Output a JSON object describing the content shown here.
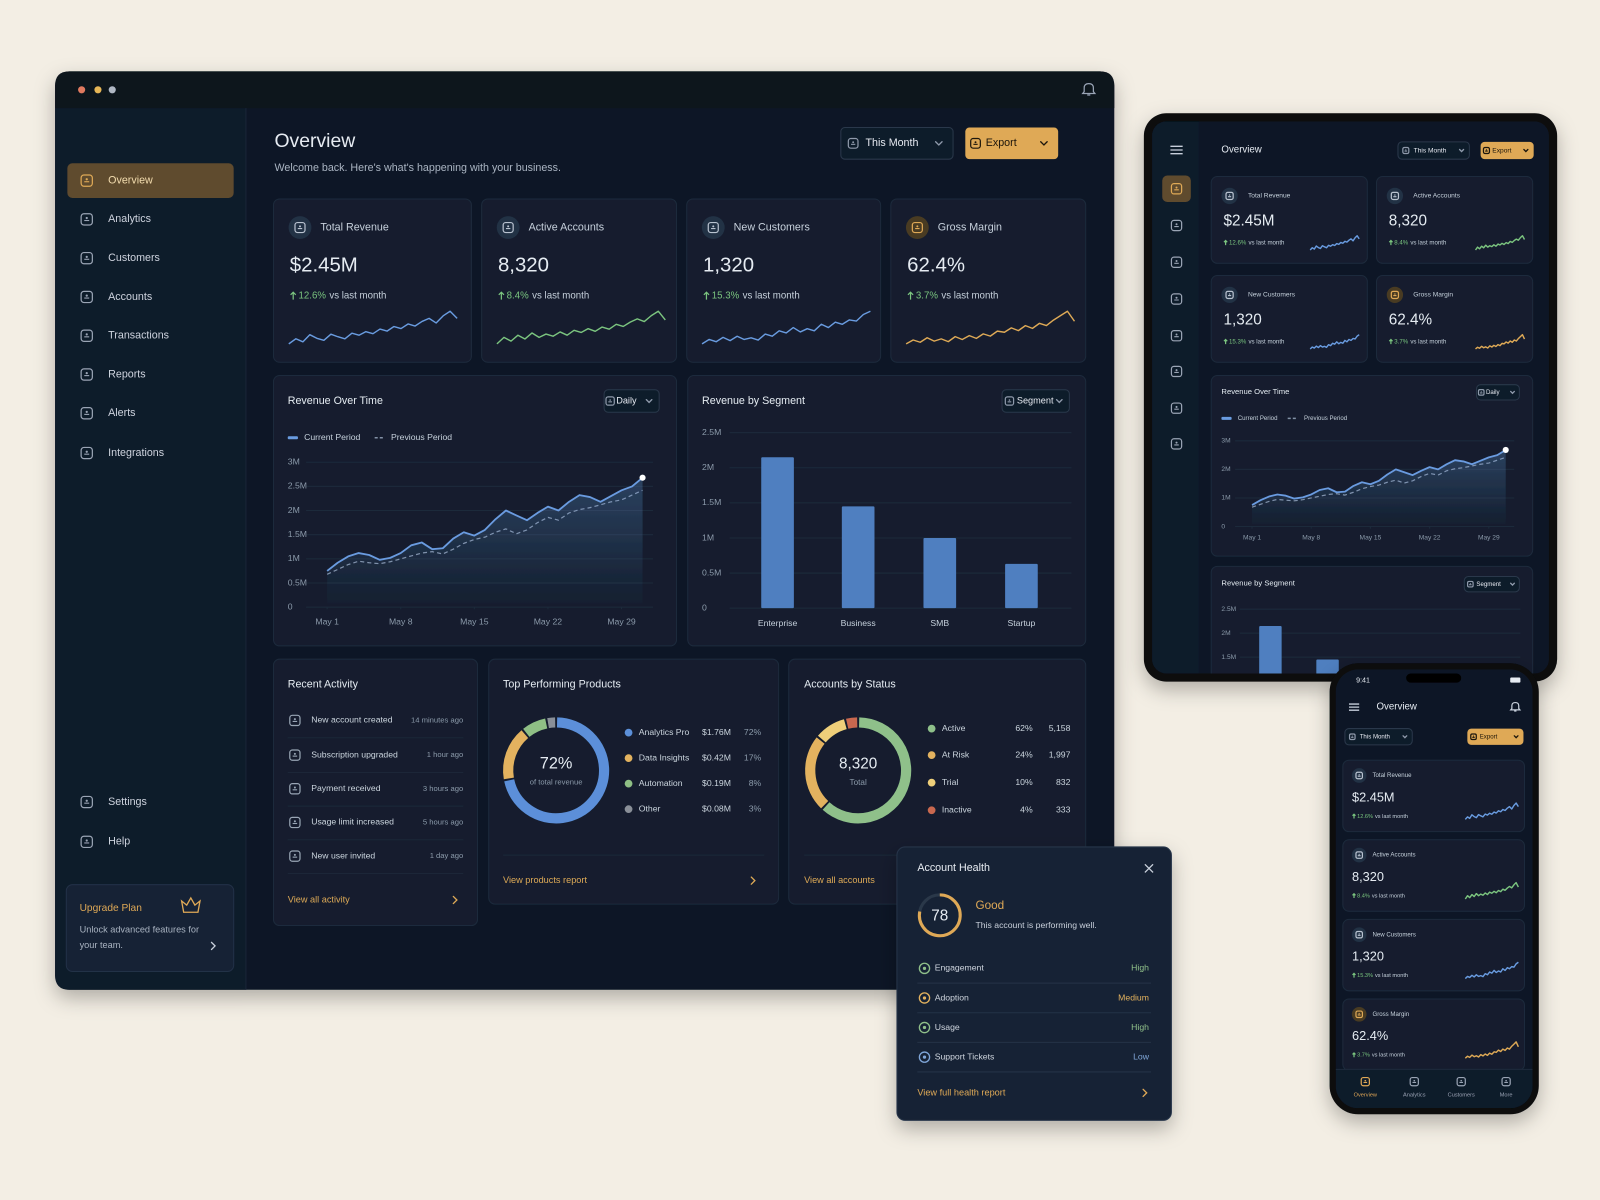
{
  "window": {
    "nav": [
      "Overview",
      "Analytics",
      "Customers",
      "Accounts",
      "Transactions",
      "Reports",
      "Alerts",
      "Integrations"
    ],
    "nav_bottom": [
      "Settings",
      "Help"
    ],
    "upgrade": {
      "title": "Upgrade Plan",
      "text": "Unlock advanced features for your team."
    }
  },
  "header": {
    "title": "Overview",
    "subtitle": "Welcome back. Here's what's happening with your business.",
    "period": "This Month",
    "export": "Export"
  },
  "kpis": [
    {
      "label": "Total Revenue",
      "value": "$2.45M",
      "change": "12.6%",
      "note": "vs last month",
      "color": "#6a9be0",
      "trend": [
        3,
        4,
        3.4,
        4.8,
        4.1,
        3.7,
        4.9,
        4.4,
        4,
        5.1,
        4.7,
        5.4,
        5,
        5.9,
        5.5,
        6.4,
        6,
        6.9,
        6.5,
        7.4,
        8,
        7.1,
        8.5,
        9.4,
        8
      ]
    },
    {
      "label": "Active Accounts",
      "value": "8,320",
      "change": "8.4%",
      "note": "vs last month",
      "color": "#7cc47f",
      "trend": [
        3,
        4.2,
        3.5,
        4.6,
        3.9,
        5,
        4.2,
        4.8,
        4.4,
        5.2,
        4.6,
        5.5,
        5.1,
        5.8,
        5.3,
        6.1,
        5.7,
        6.6,
        6.2,
        7,
        7.6,
        7.1,
        8.2,
        9,
        7.4
      ]
    },
    {
      "label": "New Customers",
      "value": "1,320",
      "change": "15.3%",
      "note": "vs last month",
      "color": "#6a9be0",
      "trend": [
        3.2,
        4,
        3.6,
        4.4,
        3.8,
        4.6,
        4,
        4.3,
        3.9,
        5,
        4.6,
        5.6,
        5.2,
        6.2,
        5.4,
        6,
        5.6,
        6.8,
        6.2,
        7.2,
        6.8,
        7.6,
        7.4,
        8.6,
        9.2
      ]
    },
    {
      "label": "Gross Margin",
      "value": "62.4%",
      "change": "3.7%",
      "note": "vs last month",
      "color": "#dfa957",
      "trend": [
        3.5,
        4.2,
        3.8,
        4.6,
        4,
        4.4,
        3.9,
        4.8,
        4.3,
        5,
        4.5,
        5.3,
        4.9,
        5.8,
        5.6,
        6.4,
        5.9,
        6.8,
        6.3,
        7.2,
        6.8,
        7.8,
        8.6,
        9.4,
        7.6
      ]
    }
  ],
  "revenue_over_time": {
    "type": "line",
    "title": "Revenue Over Time",
    "control": "Daily",
    "x": [
      1,
      2,
      3,
      4,
      5,
      6,
      7,
      8,
      9,
      10,
      11,
      12,
      13,
      14,
      15,
      16,
      17,
      18,
      19,
      20,
      21,
      22,
      23,
      24,
      25,
      26,
      27,
      28,
      29,
      30,
      31
    ],
    "xlim": [
      -1,
      32
    ],
    "xticks": [
      {
        "value": 1,
        "label": "May 1"
      },
      {
        "value": 8,
        "label": "May 8"
      },
      {
        "value": 15,
        "label": "May 15"
      },
      {
        "value": 22,
        "label": "May 22"
      },
      {
        "value": 29,
        "label": "May 29"
      }
    ],
    "ylim": [
      0,
      3000000
    ],
    "yticks": [
      0,
      {
        "value": 500000,
        "label": "0.5M"
      },
      {
        "value": 1000000,
        "label": "1M"
      },
      {
        "value": 1500000,
        "label": "1.5M"
      },
      {
        "value": 2000000,
        "label": "2M"
      },
      {
        "value": 2500000,
        "label": "2.5M"
      },
      {
        "value": 3000000,
        "label": "3M"
      }
    ],
    "tablet_yticks": [
      0,
      {
        "value": 1000000,
        "label": "1M"
      },
      {
        "value": 2000000,
        "label": "2M"
      },
      {
        "value": 3000000,
        "label": "3M"
      }
    ],
    "series": [
      {
        "name": "Current Period",
        "color": "#6a9be0",
        "values": [
          750000,
          920000,
          1050000,
          1120000,
          1080000,
          980000,
          1020000,
          1120000,
          1280000,
          1340000,
          1200000,
          1220000,
          1420000,
          1550000,
          1480000,
          1600000,
          1820000,
          2000000,
          1900000,
          1800000,
          1950000,
          2080000,
          2000000,
          2180000,
          2320000,
          2280000,
          2180000,
          2300000,
          2420000,
          2500000,
          2680000
        ]
      },
      {
        "name": "Previous Period",
        "color": "#8391a6",
        "dashed": true,
        "values": [
          680000,
          780000,
          880000,
          950000,
          920000,
          900000,
          940000,
          1000000,
          1060000,
          1120000,
          1150000,
          1100000,
          1200000,
          1320000,
          1400000,
          1450000,
          1550000,
          1620000,
          1520000,
          1600000,
          1750000,
          1860000,
          1800000,
          1950000,
          2020000,
          2060000,
          2120000,
          2180000,
          2220000,
          2320000,
          2420000
        ]
      }
    ]
  },
  "revenue_by_segment": {
    "type": "bar",
    "title": "Revenue by Segment",
    "control": "Segment",
    "categories": [
      "Enterprise",
      "Business",
      "SMB",
      "Startup"
    ],
    "values": [
      2150000,
      1450000,
      1000000,
      630000
    ],
    "color": "#4f7fc0",
    "ylim": [
      0,
      2500000
    ],
    "yticks": [
      0,
      {
        "value": 500000,
        "label": "0.5M"
      },
      {
        "value": 1000000,
        "label": "1M"
      },
      {
        "value": 1500000,
        "label": "1.5M"
      },
      {
        "value": 2000000,
        "label": "2M"
      },
      {
        "value": 2500000,
        "label": "2.5M"
      }
    ],
    "tablet_yticks": [
      {
        "value": 2500000,
        "label": "2.5M"
      },
      {
        "value": 2000000,
        "label": "2M"
      },
      {
        "value": 1500000,
        "label": "1.5M"
      }
    ]
  },
  "recent_activity": {
    "title": "Recent Activity",
    "items": [
      {
        "text": "New account created",
        "time": "14 minutes ago"
      },
      {
        "text": "Subscription upgraded",
        "time": "1 hour ago"
      },
      {
        "text": "Payment received",
        "time": "3 hours ago"
      },
      {
        "text": "Usage limit increased",
        "time": "5 hours ago"
      },
      {
        "text": "New user invited",
        "time": "1 day ago"
      }
    ],
    "link": "View all activity"
  },
  "top_products": {
    "type": "pie",
    "title": "Top Performing Products",
    "center_label": "of total revenue",
    "categories": [
      "Analytics Pro",
      "Data Insights",
      "Automation",
      "Other"
    ],
    "values": [
      72,
      17,
      8,
      3
    ],
    "value_labels": [
      "72%",
      "17%",
      "8%",
      "3%"
    ],
    "revenue": [
      1760000,
      420000,
      190000,
      80000
    ],
    "revenue_labels": [
      "$1.76M",
      "$0.42M",
      "$0.19M",
      "$0.08M"
    ],
    "colors": [
      "#5b8fd9",
      "#e3b25e",
      "#8fbf85",
      "#8a8f98"
    ],
    "link": "View products report"
  },
  "accounts_by_status": {
    "type": "pie",
    "title": "Accounts by Status",
    "center_label": "Total",
    "categories": [
      "Active",
      "At Risk",
      "Trial",
      "Inactive"
    ],
    "values": [
      62,
      24,
      10,
      4
    ],
    "value_labels": [
      "62%",
      "24%",
      "10%",
      "4%"
    ],
    "counts": [
      "5,158",
      "1,997",
      "832",
      "333"
    ],
    "colors": [
      "#8fc08a",
      "#e3b25e",
      "#efcf7a",
      "#c9674f"
    ],
    "link": "View all accounts"
  },
  "account_health": {
    "title": "Account Health",
    "score": 78,
    "status": "Good",
    "message": "This account is performing well.",
    "metrics": [
      {
        "label": "Engagement",
        "level": "High",
        "color": "#8fc08a"
      },
      {
        "label": "Adoption",
        "level": "Medium",
        "color": "#e3b25e"
      },
      {
        "label": "Usage",
        "level": "High",
        "color": "#8fc08a"
      },
      {
        "label": "Support Tickets",
        "level": "Low",
        "color": "#7fa6d9"
      }
    ],
    "link": "View full health report"
  },
  "phone": {
    "time": "9:41",
    "tabs": [
      "Overview",
      "Analytics",
      "Customers",
      "More"
    ]
  }
}
